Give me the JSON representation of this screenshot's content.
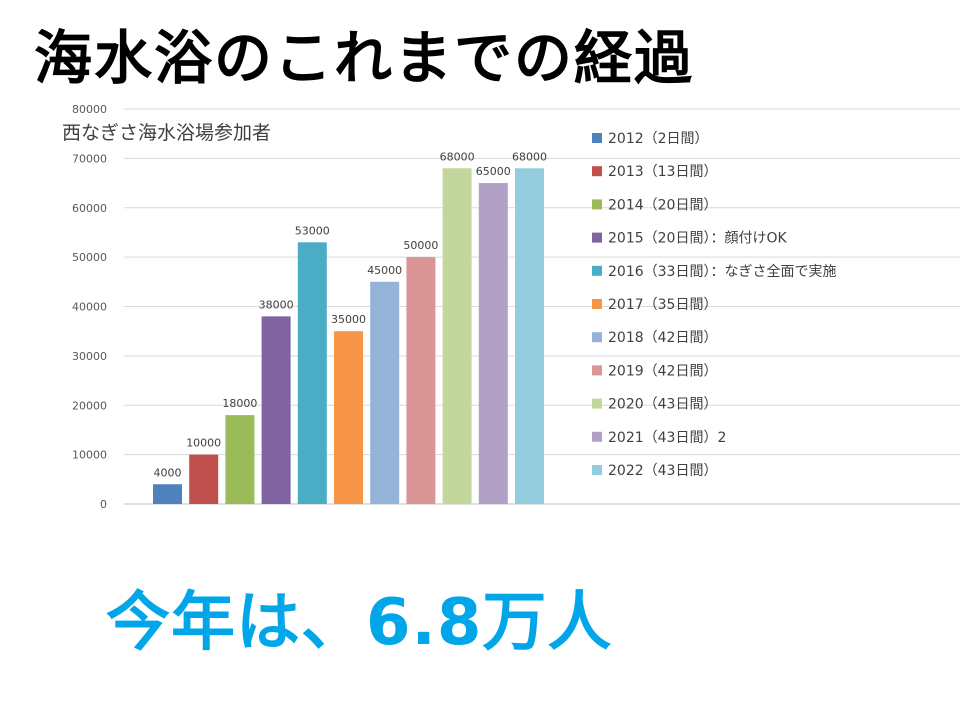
{
  "page": {
    "title": "海水浴のこれまでの経過",
    "footer": "今年は、6.8万人"
  },
  "chart_data": {
    "type": "bar",
    "title": "西なぎさ海水浴場参加者",
    "xlabel": "",
    "ylabel": "",
    "ylim": [
      0,
      80000
    ],
    "yticks": [
      0,
      10000,
      20000,
      30000,
      40000,
      50000,
      60000,
      70000,
      80000
    ],
    "grid": true,
    "legend_position": "right",
    "series": [
      {
        "name": "2012（2日間）",
        "value": 4000,
        "color": "#4f81bd"
      },
      {
        "name": "2013（13日間）",
        "value": 10000,
        "color": "#c0504d"
      },
      {
        "name": "2014（20日間）",
        "value": 18000,
        "color": "#9bbb59"
      },
      {
        "name": "2015（20日間）：顔付けOK",
        "value": 38000,
        "color": "#8064a2"
      },
      {
        "name": "2016（33日間）：なぎさ全面で実施",
        "value": 53000,
        "color": "#4bacc6"
      },
      {
        "name": "2017（35日間）",
        "value": 35000,
        "color": "#f79646"
      },
      {
        "name": "2018（42日間）",
        "value": 45000,
        "color": "#95b3d7"
      },
      {
        "name": "2019（42日間）",
        "value": 50000,
        "color": "#d99694"
      },
      {
        "name": "2020（43日間）",
        "value": 68000,
        "color": "#c3d69b"
      },
      {
        "name": "2021（43日間）2",
        "value": 65000,
        "color": "#b2a1c7"
      },
      {
        "name": "2022（43日間）",
        "value": 68000,
        "color": "#93cddd"
      }
    ]
  }
}
